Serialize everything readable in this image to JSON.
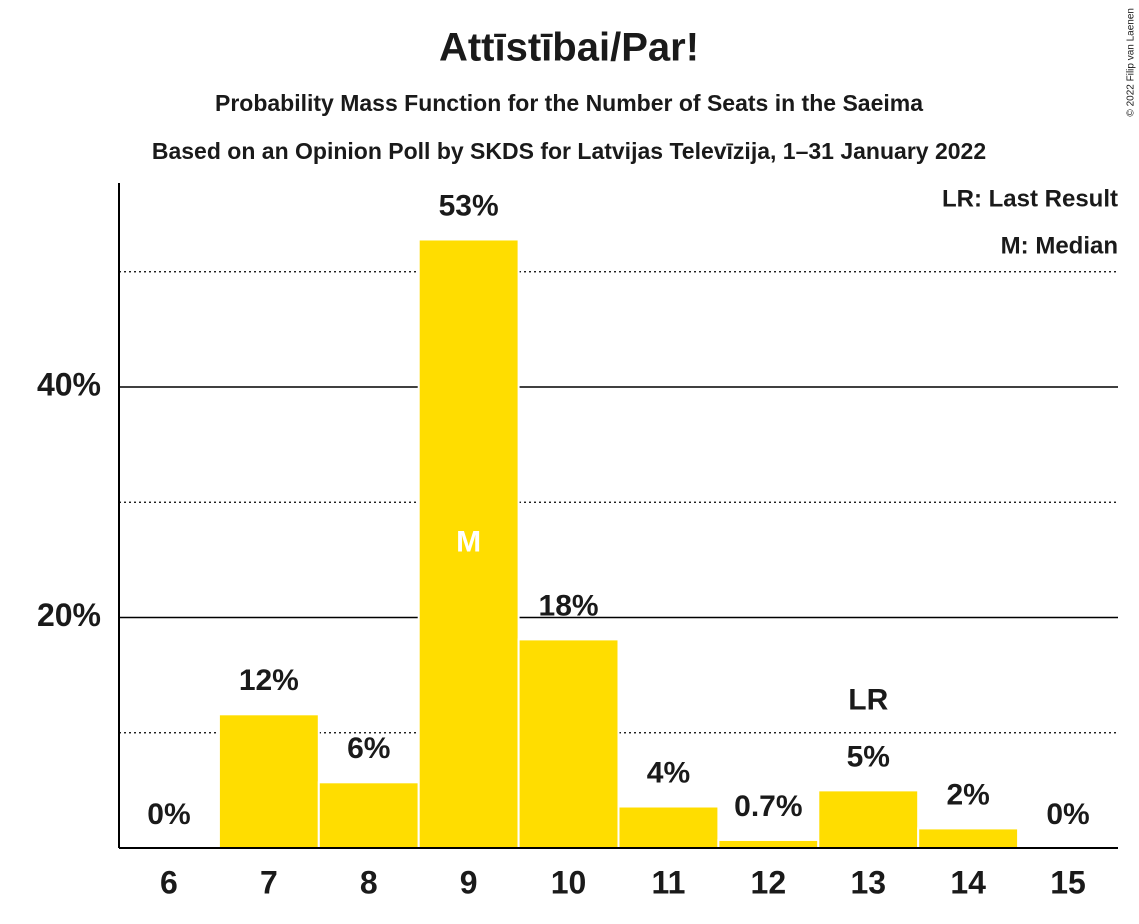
{
  "chart_data": {
    "type": "bar",
    "title": "Attīstībai/Par!",
    "subtitle": "Probability Mass Function for the Number of Seats in the Saeima",
    "subtitle2": "Based on an Opinion Poll by SKDS for Latvijas Televīzija, 1–31 January 2022",
    "copyright": "© 2022 Filip van Laenen",
    "categories": [
      6,
      7,
      8,
      9,
      10,
      11,
      12,
      13,
      14,
      15
    ],
    "values": [
      0,
      11.6,
      5.7,
      52.8,
      18.1,
      3.6,
      0.7,
      5.0,
      1.7,
      0
    ],
    "value_labels": [
      "0%",
      "12%",
      "6%",
      "53%",
      "18%",
      "4%",
      "0.7%",
      "5%",
      "2%",
      "0%"
    ],
    "color": "#ffdd00",
    "ylim": [
      0,
      57.7
    ],
    "yticks": [
      {
        "value": 20,
        "label": "20%"
      },
      {
        "value": 40,
        "label": "40%"
      }
    ],
    "minor_gridlines": [
      10,
      30,
      50
    ],
    "grid": true,
    "median": 9,
    "median_label": "M",
    "last_result": 13,
    "last_result_label": "LR",
    "legend": [
      "LR: Last Result",
      "M: Median"
    ],
    "legend_position": "top-right"
  }
}
